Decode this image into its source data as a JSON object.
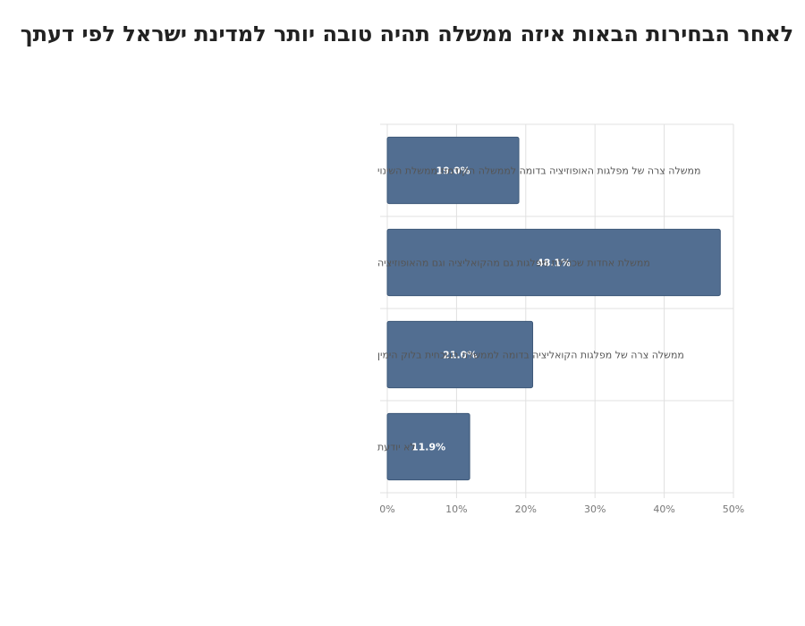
{
  "chart_data": {
    "type": "bar",
    "orientation": "horizontal",
    "title": "לאחר הבחירות הבאות איזה ממשלה תהיה טובה יותר למדינת ישראל לפי דעתך",
    "categories": [
      "ממשלה צרה של מפלגות האופוזיציה בדומה לממשלה הקודמת  ממשלת השינוי",
      "ממשלת אחדות שכוללת מפלגות גם מהקואליציה וגם מהאופוזיציה",
      "ממשלה צרה של מפלגות הקואליציה בדומה לממשלה הנוכחית  בלוק הימין",
      "לא יודעת"
    ],
    "values": [
      19.0,
      48.1,
      21.0,
      11.9
    ],
    "data_labels": [
      "19.0%",
      "48.1%",
      "21.0%",
      "11.9%"
    ],
    "xlim": [
      0,
      50
    ],
    "xticks": [
      0,
      10,
      20,
      30,
      40,
      50
    ],
    "xtick_labels": [
      "0%",
      "10%",
      "20%",
      "30%",
      "40%",
      "50%"
    ],
    "grid": true,
    "legend": "none",
    "bar_color": "#526e91",
    "bar_edge_color": "#3d5878",
    "grid_color": "#e0e0e0"
  }
}
